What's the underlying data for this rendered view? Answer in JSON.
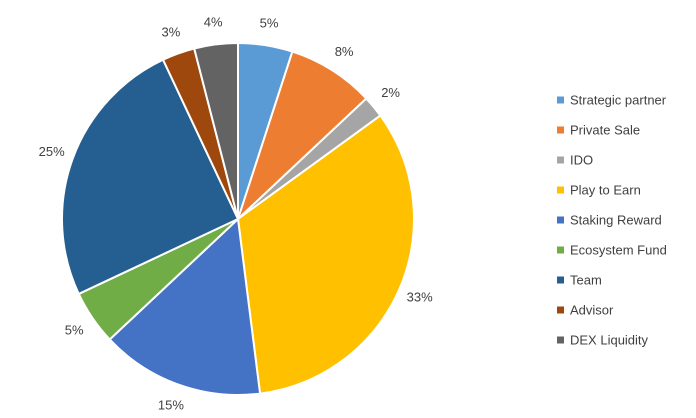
{
  "chart_data": {
    "type": "pie",
    "title": "",
    "legend_position": "right",
    "start_angle_deg": 0,
    "direction": "clockwise",
    "slices": [
      {
        "label": "Strategic partner",
        "value": 5,
        "display": "5%",
        "color": "#5B9BD5"
      },
      {
        "label": "Private Sale",
        "value": 8,
        "display": "8%",
        "color": "#ED7D31"
      },
      {
        "label": "IDO",
        "value": 2,
        "display": "2%",
        "color": "#A5A5A5"
      },
      {
        "label": "Play to Earn",
        "value": 33,
        "display": "33%",
        "color": "#FFC000"
      },
      {
        "label": "Staking Reward",
        "value": 15,
        "display": "15%",
        "color": "#4472C4"
      },
      {
        "label": "Ecosystem Fund",
        "value": 5,
        "display": "5%",
        "color": "#70AD47"
      },
      {
        "label": "Team",
        "value": 25,
        "display": "25%",
        "color": "#255E91"
      },
      {
        "label": "Advisor",
        "value": 3,
        "display": "3%",
        "color": "#9E480E"
      },
      {
        "label": "DEX Liquidity",
        "value": 4,
        "display": "4%",
        "color": "#636363"
      }
    ]
  }
}
